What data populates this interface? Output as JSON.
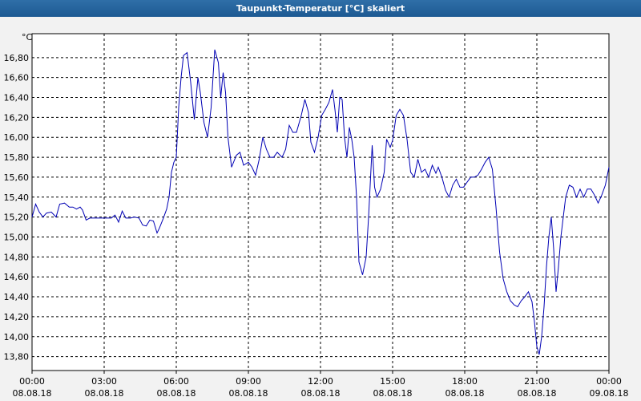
{
  "window": {
    "title": "Taupunkt-Temperatur [°C] skaliert"
  },
  "chart_data": {
    "type": "line",
    "title": "Taupunkt-Temperatur [°C] skaliert",
    "ylabel": "°C",
    "ylim": [
      13.66,
      17.04
    ],
    "yticks": [
      "16,80",
      "16,60",
      "16,40",
      "16,20",
      "16,00",
      "15,80",
      "15,60",
      "15,40",
      "15,20",
      "15,00",
      "14,80",
      "14,60",
      "14,40",
      "14,20",
      "14,00",
      "13,80"
    ],
    "xlim": [
      0,
      24
    ],
    "xticks": [
      {
        "time": "00:00",
        "date": "08.08.18"
      },
      {
        "time": "03:00",
        "date": "08.08.18"
      },
      {
        "time": "06:00",
        "date": "08.08.18"
      },
      {
        "time": "09:00",
        "date": "08.08.18"
      },
      {
        "time": "12:00",
        "date": "08.08.18"
      },
      {
        "time": "15:00",
        "date": "08.08.18"
      },
      {
        "time": "18:00",
        "date": "08.08.18"
      },
      {
        "time": "21:00",
        "date": "08.08.18"
      },
      {
        "time": "00:00",
        "date": "09.08.18"
      }
    ],
    "grid": true,
    "line_color": "#0000b4",
    "series": [
      {
        "points": [
          [
            0.0,
            15.2
          ],
          [
            0.15,
            15.33
          ],
          [
            0.3,
            15.25
          ],
          [
            0.45,
            15.2
          ],
          [
            0.6,
            15.24
          ],
          [
            0.8,
            15.25
          ],
          [
            1.0,
            15.2
          ],
          [
            1.15,
            15.33
          ],
          [
            1.35,
            15.34
          ],
          [
            1.55,
            15.3
          ],
          [
            1.7,
            15.3
          ],
          [
            1.85,
            15.28
          ],
          [
            2.0,
            15.3
          ],
          [
            2.1,
            15.27
          ],
          [
            2.25,
            15.17
          ],
          [
            2.4,
            15.19
          ],
          [
            2.7,
            15.19
          ],
          [
            3.0,
            15.19
          ],
          [
            3.3,
            15.19
          ],
          [
            3.45,
            15.22
          ],
          [
            3.6,
            15.15
          ],
          [
            3.75,
            15.26
          ],
          [
            3.9,
            15.19
          ],
          [
            4.1,
            15.19
          ],
          [
            4.25,
            15.2
          ],
          [
            4.45,
            15.19
          ],
          [
            4.6,
            15.12
          ],
          [
            4.75,
            15.11
          ],
          [
            4.9,
            15.17
          ],
          [
            5.05,
            15.16
          ],
          [
            5.2,
            15.04
          ],
          [
            5.3,
            15.09
          ],
          [
            5.45,
            15.18
          ],
          [
            5.6,
            15.28
          ],
          [
            5.7,
            15.4
          ],
          [
            5.8,
            15.65
          ],
          [
            5.9,
            15.75
          ],
          [
            6.0,
            15.8
          ],
          [
            6.1,
            16.3
          ],
          [
            6.2,
            16.6
          ],
          [
            6.3,
            16.82
          ],
          [
            6.45,
            16.85
          ],
          [
            6.6,
            16.55
          ],
          [
            6.75,
            16.18
          ],
          [
            6.9,
            16.6
          ],
          [
            7.0,
            16.45
          ],
          [
            7.15,
            16.15
          ],
          [
            7.3,
            16.0
          ],
          [
            7.45,
            16.3
          ],
          [
            7.6,
            16.88
          ],
          [
            7.75,
            16.75
          ],
          [
            7.85,
            16.4
          ],
          [
            7.95,
            16.65
          ],
          [
            8.05,
            16.45
          ],
          [
            8.15,
            16.0
          ],
          [
            8.3,
            15.7
          ],
          [
            8.5,
            15.82
          ],
          [
            8.65,
            15.85
          ],
          [
            8.8,
            15.72
          ],
          [
            9.0,
            15.75
          ],
          [
            9.15,
            15.7
          ],
          [
            9.3,
            15.62
          ],
          [
            9.45,
            15.78
          ],
          [
            9.6,
            16.0
          ],
          [
            9.75,
            15.88
          ],
          [
            9.9,
            15.8
          ],
          [
            10.05,
            15.8
          ],
          [
            10.2,
            15.85
          ],
          [
            10.4,
            15.8
          ],
          [
            10.55,
            15.88
          ],
          [
            10.7,
            16.12
          ],
          [
            10.85,
            16.05
          ],
          [
            11.0,
            16.05
          ],
          [
            11.2,
            16.22
          ],
          [
            11.35,
            16.38
          ],
          [
            11.5,
            16.25
          ],
          [
            11.6,
            15.95
          ],
          [
            11.75,
            15.85
          ],
          [
            11.9,
            16.0
          ],
          [
            12.05,
            16.22
          ],
          [
            12.2,
            16.28
          ],
          [
            12.35,
            16.35
          ],
          [
            12.5,
            16.48
          ],
          [
            12.6,
            16.28
          ],
          [
            12.7,
            16.05
          ],
          [
            12.8,
            16.4
          ],
          [
            12.9,
            16.38
          ],
          [
            13.0,
            16.0
          ],
          [
            13.1,
            15.8
          ],
          [
            13.2,
            16.1
          ],
          [
            13.3,
            15.98
          ],
          [
            13.4,
            15.8
          ],
          [
            13.5,
            15.4
          ],
          [
            13.6,
            14.75
          ],
          [
            13.75,
            14.62
          ],
          [
            13.9,
            14.8
          ],
          [
            14.0,
            15.2
          ],
          [
            14.15,
            15.92
          ],
          [
            14.25,
            15.5
          ],
          [
            14.35,
            15.4
          ],
          [
            14.5,
            15.48
          ],
          [
            14.65,
            15.65
          ],
          [
            14.75,
            15.98
          ],
          [
            14.9,
            15.9
          ],
          [
            15.0,
            15.97
          ],
          [
            15.15,
            16.22
          ],
          [
            15.3,
            16.28
          ],
          [
            15.45,
            16.22
          ],
          [
            15.6,
            15.98
          ],
          [
            15.75,
            15.65
          ],
          [
            15.9,
            15.6
          ],
          [
            16.05,
            15.78
          ],
          [
            16.2,
            15.65
          ],
          [
            16.35,
            15.68
          ],
          [
            16.5,
            15.6
          ],
          [
            16.65,
            15.72
          ],
          [
            16.8,
            15.64
          ],
          [
            16.9,
            15.7
          ],
          [
            17.05,
            15.6
          ],
          [
            17.2,
            15.47
          ],
          [
            17.35,
            15.4
          ],
          [
            17.5,
            15.52
          ],
          [
            17.65,
            15.58
          ],
          [
            17.8,
            15.5
          ],
          [
            17.95,
            15.5
          ],
          [
            18.1,
            15.55
          ],
          [
            18.25,
            15.6
          ],
          [
            18.4,
            15.6
          ],
          [
            18.55,
            15.62
          ],
          [
            18.7,
            15.68
          ],
          [
            18.85,
            15.75
          ],
          [
            19.0,
            15.8
          ],
          [
            19.15,
            15.68
          ],
          [
            19.3,
            15.3
          ],
          [
            19.45,
            14.85
          ],
          [
            19.6,
            14.58
          ],
          [
            19.75,
            14.45
          ],
          [
            19.9,
            14.36
          ],
          [
            20.05,
            14.32
          ],
          [
            20.2,
            14.3
          ],
          [
            20.35,
            14.36
          ],
          [
            20.5,
            14.4
          ],
          [
            20.65,
            14.45
          ],
          [
            20.8,
            14.35
          ],
          [
            20.9,
            14.15
          ],
          [
            21.0,
            13.9
          ],
          [
            21.1,
            13.82
          ],
          [
            21.2,
            14.0
          ],
          [
            21.3,
            14.3
          ],
          [
            21.4,
            14.7
          ],
          [
            21.5,
            15.0
          ],
          [
            21.6,
            15.2
          ],
          [
            21.7,
            14.88
          ],
          [
            21.8,
            14.45
          ],
          [
            21.9,
            14.7
          ],
          [
            22.0,
            15.0
          ],
          [
            22.1,
            15.2
          ],
          [
            22.2,
            15.4
          ],
          [
            22.35,
            15.52
          ],
          [
            22.5,
            15.5
          ],
          [
            22.65,
            15.4
          ],
          [
            22.8,
            15.48
          ],
          [
            22.95,
            15.4
          ],
          [
            23.1,
            15.48
          ],
          [
            23.25,
            15.48
          ],
          [
            23.4,
            15.42
          ],
          [
            23.55,
            15.34
          ],
          [
            23.7,
            15.42
          ],
          [
            23.85,
            15.52
          ],
          [
            24.0,
            15.7
          ]
        ]
      }
    ]
  }
}
